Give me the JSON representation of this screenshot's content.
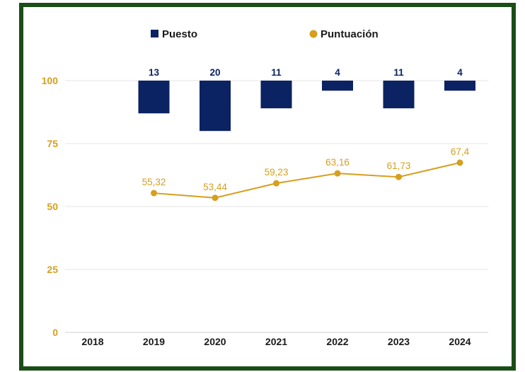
{
  "chart_data": {
    "type": "bar+line",
    "categories": [
      "2018",
      "2019",
      "2020",
      "2021",
      "2022",
      "2023",
      "2024"
    ],
    "ylim": [
      0,
      100
    ],
    "yticks": [
      "0",
      "25",
      "50",
      "75",
      "100"
    ],
    "grid": true,
    "legend_placement": "top",
    "series": [
      {
        "name": "Puesto",
        "type": "bar",
        "direction": "down from 100",
        "color": "#0b2263",
        "values": [
          null,
          13,
          20,
          11,
          4,
          11,
          4
        ],
        "labels": [
          "",
          "13",
          "20",
          "11",
          "4",
          "11",
          "4"
        ]
      },
      {
        "name": "Puntuación",
        "type": "line",
        "color": "#d69f1d",
        "values": [
          null,
          55.32,
          53.44,
          59.23,
          63.16,
          61.73,
          67.4
        ],
        "labels": [
          "",
          "55,32",
          "53,44",
          "59,23",
          "63,16",
          "61,73",
          "67,4"
        ]
      }
    ]
  },
  "colors": {
    "frame": "#1b4d16",
    "grid": "#e6e6e6",
    "ytick_text": "#d69f1d",
    "xtick_text": "#1a1a1a"
  }
}
